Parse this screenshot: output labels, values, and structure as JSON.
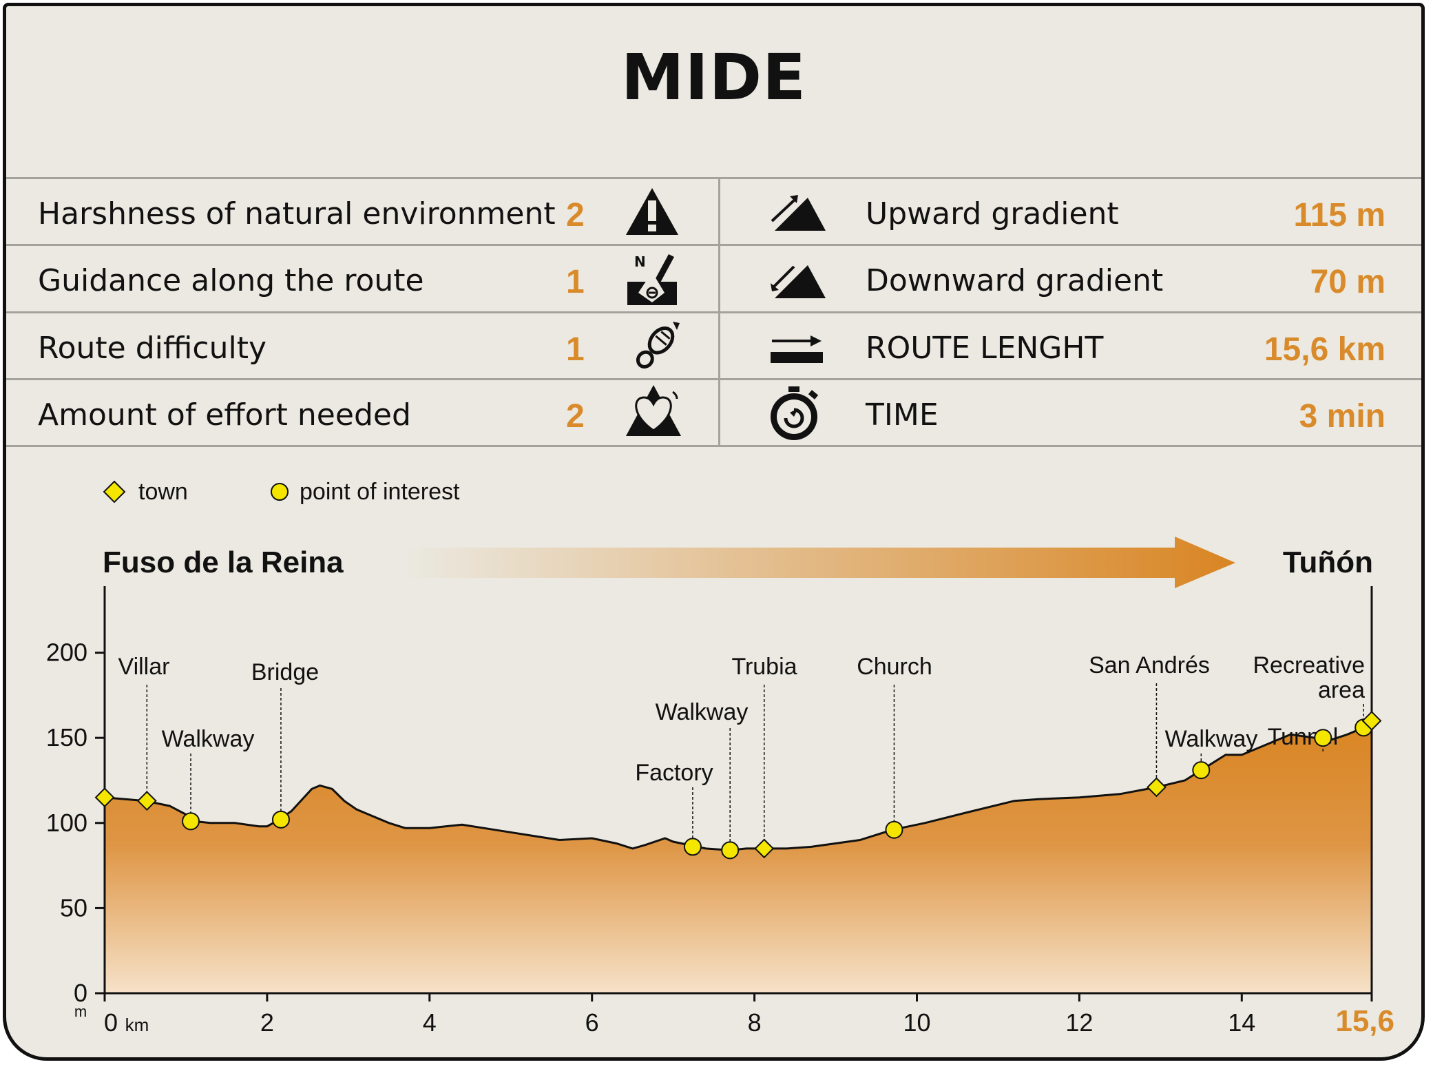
{
  "title": "MIDE",
  "left_rows": [
    {
      "label": "Harshness of natural environment",
      "value": "2",
      "icon": "warning-icon"
    },
    {
      "label": "Guidance along the route",
      "value": "1",
      "icon": "compass-sign-icon"
    },
    {
      "label": "Route difficulty",
      "value": "1",
      "icon": "footprint-icon"
    },
    {
      "label": "Amount of effort needed",
      "value": "2",
      "icon": "heart-mountain-icon"
    }
  ],
  "right_rows": [
    {
      "label": "Upward gradient",
      "value": "115 m",
      "icon": "upward-gradient-icon"
    },
    {
      "label": "Downward gradient",
      "value": "70 m",
      "icon": "downward-gradient-icon"
    },
    {
      "label": "ROUTE LENGHT",
      "value": "15,6 km",
      "icon": "route-length-icon"
    },
    {
      "label": "TIME",
      "value": "3 min",
      "icon": "stopwatch-icon"
    }
  ],
  "legend": {
    "town": "town",
    "poi": "point of interest"
  },
  "colors": {
    "accent": "#d98a2a",
    "marker": "#f5e600",
    "background": "#ebe9e1"
  },
  "chart_data": {
    "type": "area",
    "start_label": "Fuso de la Reina",
    "end_label": "Tuñón",
    "xlabel_unit": "km",
    "ylabel_unit": "m",
    "x_end_label": "15,6",
    "xlim": [
      0,
      15.6
    ],
    "ylim": [
      0,
      250
    ],
    "x_ticks": [
      0,
      2,
      4,
      6,
      8,
      10,
      12,
      14
    ],
    "x_tick_labels": [
      "0",
      "2",
      "4",
      "6",
      "8",
      "10",
      "12",
      "14"
    ],
    "y_ticks": [
      0,
      50,
      100,
      150,
      200
    ],
    "y_tick_labels": [
      "0",
      "50",
      "100",
      "150",
      "200"
    ],
    "profile": {
      "x": [
        0,
        0.5,
        0.8,
        1.0,
        1.1,
        1.3,
        1.6,
        1.9,
        2.0,
        2.15,
        2.3,
        2.55,
        2.65,
        2.8,
        2.95,
        3.1,
        3.5,
        3.7,
        4.0,
        4.4,
        4.8,
        5.2,
        5.6,
        6.0,
        6.3,
        6.5,
        6.65,
        6.9,
        7.0,
        7.2,
        7.4,
        7.7,
        7.9,
        8.1,
        8.4,
        8.7,
        9.3,
        9.7,
        10.1,
        10.6,
        11.2,
        11.5,
        12.0,
        12.5,
        12.95,
        13.3,
        13.5,
        13.8,
        14.0,
        14.3,
        14.6,
        14.9,
        15.05,
        15.3,
        15.5,
        15.6
      ],
      "y": [
        115,
        113,
        110,
        105,
        101,
        100,
        100,
        98,
        98,
        102,
        107,
        120,
        122,
        120,
        113,
        108,
        100,
        97,
        97,
        99,
        96,
        93,
        90,
        91,
        88,
        85,
        87,
        91,
        89,
        87,
        85,
        84,
        85,
        85,
        85,
        86,
        90,
        96,
        100,
        106,
        113,
        114,
        115,
        117,
        121,
        125,
        131,
        140,
        140,
        146,
        152,
        150,
        148,
        152,
        156,
        160
      ]
    },
    "waypoints": [
      {
        "name": "",
        "x": 0.0,
        "y": 115,
        "kind": "town"
      },
      {
        "name": "Villar",
        "x": 0.52,
        "y": 113,
        "kind": "town"
      },
      {
        "name": "Walkway",
        "x": 1.06,
        "y": 101,
        "kind": "poi"
      },
      {
        "name": "Bridge",
        "x": 2.17,
        "y": 102,
        "kind": "poi"
      },
      {
        "name": "Factory",
        "x": 7.24,
        "y": 86,
        "kind": "poi"
      },
      {
        "name": "Walkway",
        "x": 7.7,
        "y": 84,
        "kind": "poi"
      },
      {
        "name": "Trubia",
        "x": 8.12,
        "y": 85,
        "kind": "town"
      },
      {
        "name": "Church",
        "x": 9.72,
        "y": 96,
        "kind": "poi"
      },
      {
        "name": "San Andrés",
        "x": 12.95,
        "y": 121,
        "kind": "town"
      },
      {
        "name": "Walkway",
        "x": 13.5,
        "y": 131,
        "kind": "poi"
      },
      {
        "name": "Tunnel",
        "x": 15.0,
        "y": 150,
        "kind": "poi"
      },
      {
        "name": "Recreative area",
        "x": 15.5,
        "y": 156,
        "kind": "poi"
      },
      {
        "name": "",
        "x": 15.6,
        "y": 160,
        "kind": "town"
      }
    ]
  }
}
